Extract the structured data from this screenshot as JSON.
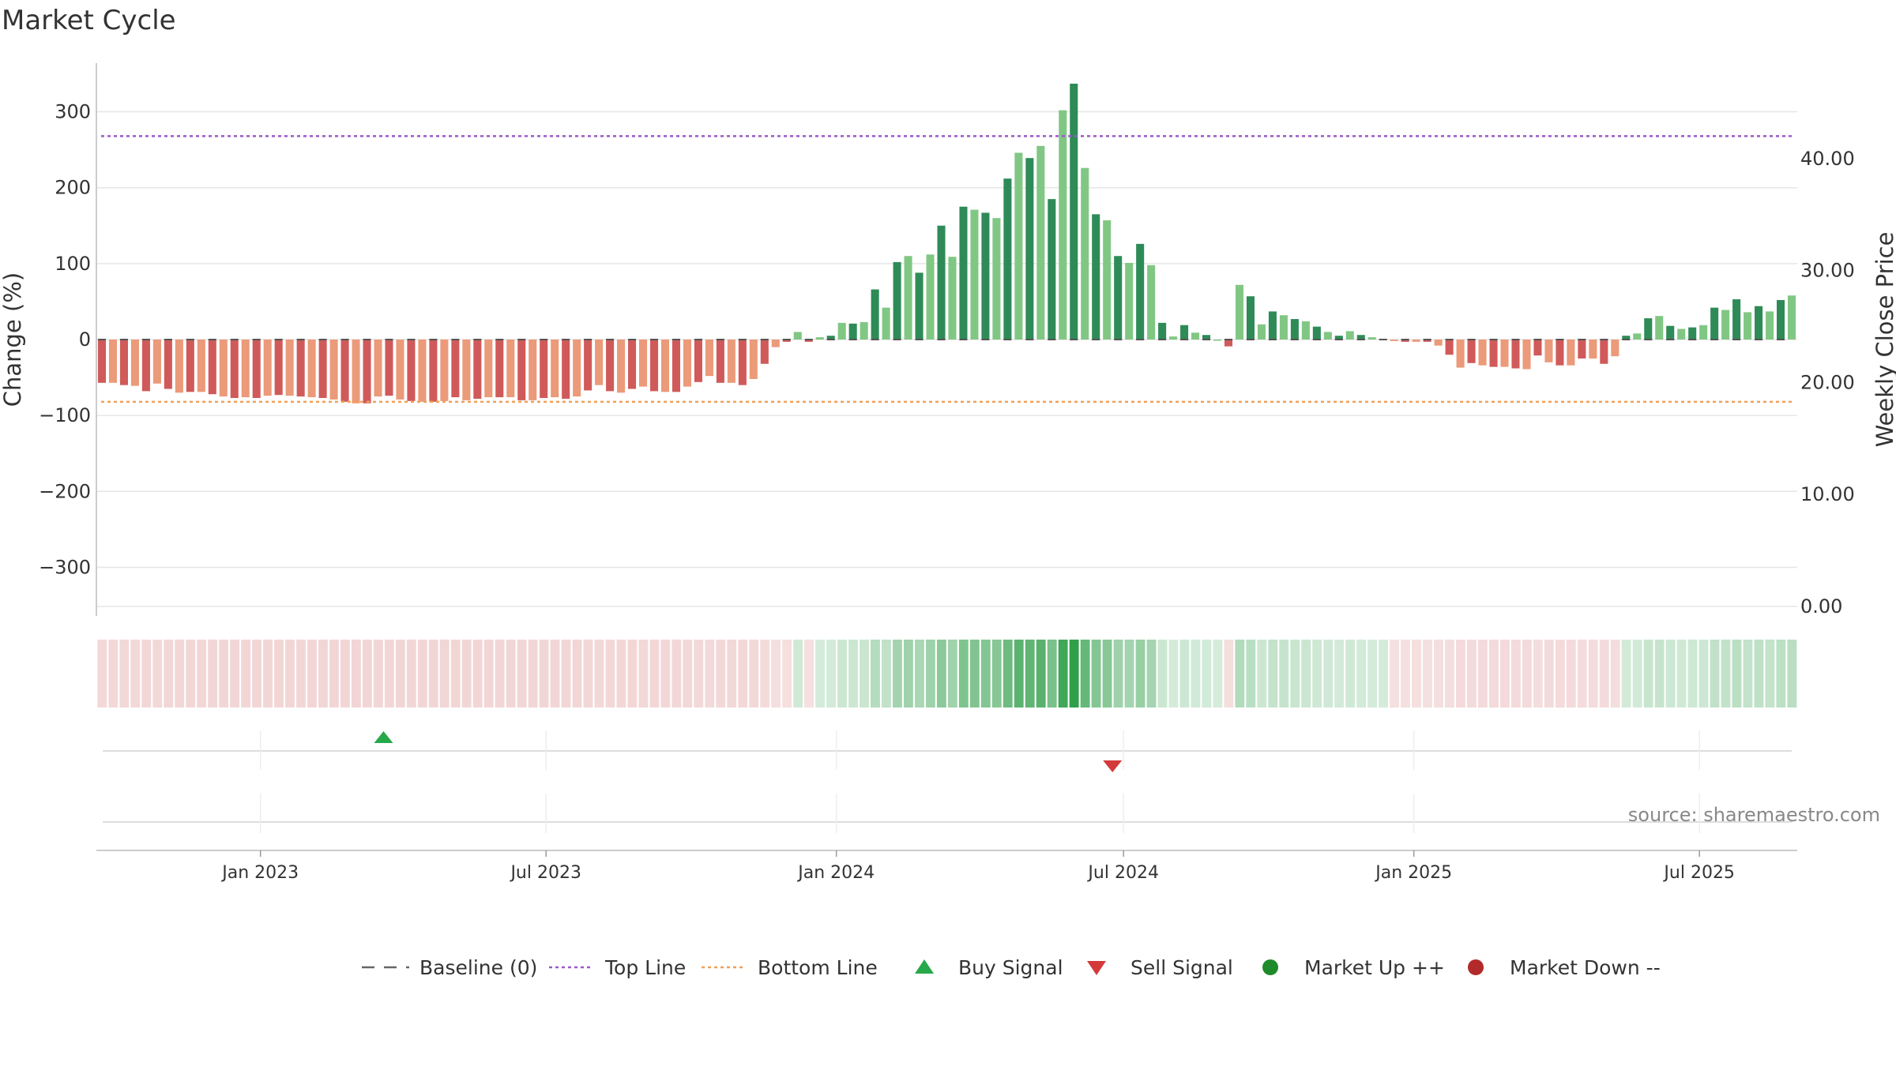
{
  "chart_data": {
    "type": "bar",
    "title": "Market Cycle",
    "ylabel_left": "Change (%)",
    "ylabel_right": "Weekly Close Price",
    "ylim_left": [
      -365,
      365
    ],
    "ylim_right": [
      0,
      48
    ],
    "yticks_left": [
      "300",
      "200",
      "100",
      "0",
      "−100",
      "−200",
      "−300"
    ],
    "yticks_left_values": [
      300,
      200,
      100,
      0,
      -100,
      -200,
      -300
    ],
    "yticks_right": [
      "40.00",
      "30.00",
      "20.00",
      "10.00",
      "0.00"
    ],
    "yticks_right_values": [
      40,
      30,
      20,
      10,
      0
    ],
    "top_line": 268,
    "bottom_line": -82,
    "baseline": 0,
    "x_start_date": "2022-09-19",
    "x_end_date": "2025-09-01",
    "xticks": [
      {
        "label": "Jan 2023",
        "date": "2023-01-01"
      },
      {
        "label": "Jul 2023",
        "date": "2023-07-01"
      },
      {
        "label": "Jan 2024",
        "date": "2024-01-01"
      },
      {
        "label": "Jul 2024",
        "date": "2024-07-01"
      },
      {
        "label": "Jan 2025",
        "date": "2025-01-01"
      },
      {
        "label": "Jul 2025",
        "date": "2025-07-01"
      }
    ],
    "weekly_change": [
      -57,
      -57,
      -60,
      -61,
      -68,
      -58,
      -65,
      -70,
      -69,
      -69,
      -72,
      -75,
      -77,
      -76,
      -77,
      -74,
      -73,
      -74,
      -75,
      -76,
      -77,
      -79,
      -82,
      -84,
      -84,
      -75,
      -74,
      -79,
      -81,
      -82,
      -82,
      -81,
      -76,
      -80,
      -78,
      -76,
      -76,
      -76,
      -80,
      -80,
      -77,
      -76,
      -78,
      -75,
      -67,
      -60,
      -68,
      -70,
      -65,
      -62,
      -68,
      -69,
      -69,
      -62,
      -56,
      -48,
      -57,
      -57,
      -60,
      -52,
      -32,
      -10,
      -3,
      10,
      -3,
      3,
      5,
      22,
      21,
      23,
      66,
      42,
      102,
      110,
      88,
      112,
      150,
      109,
      175,
      171,
      167,
      160,
      212,
      246,
      239,
      255,
      185,
      302,
      337,
      226,
      165,
      157,
      110,
      101,
      126,
      98,
      22,
      4,
      19,
      9,
      6,
      0,
      -9,
      72,
      57,
      20,
      37,
      32,
      27,
      24,
      17,
      10,
      5,
      11,
      6,
      3,
      1,
      -2,
      -3,
      -3,
      -3,
      -8,
      -20,
      -37,
      -31,
      -34,
      -36,
      -36,
      -38,
      -39,
      -21,
      -30,
      -34,
      -34,
      -25,
      -25,
      -32,
      -22,
      5,
      8,
      28,
      31,
      18,
      14,
      16,
      19,
      42,
      39,
      53,
      36,
      44,
      37,
      52,
      58
    ],
    "weekly_price": [],
    "signals": [
      {
        "type": "buy",
        "date": "2023-03-20"
      },
      {
        "type": "sell",
        "date": "2024-06-24"
      }
    ],
    "source": "source: sharemaestro.com",
    "legend": [
      {
        "label": "Baseline (0)",
        "kind": "dash",
        "color": "#666666"
      },
      {
        "label": "Top Line",
        "kind": "dot",
        "color": "#9b59c9"
      },
      {
        "label": "Bottom Line",
        "kind": "dot",
        "color": "#f0a05a"
      },
      {
        "label": "Buy Signal",
        "kind": "tri-up",
        "color": "#27a84a"
      },
      {
        "label": "Sell Signal",
        "kind": "tri-down",
        "color": "#d43a3a"
      },
      {
        "label": "Market Up ++",
        "kind": "circle",
        "color": "#1e8a2a"
      },
      {
        "label": "Market Down --",
        "kind": "circle",
        "color": "#b22a2a"
      }
    ]
  },
  "colors": {
    "up_dark": "#2e8b57",
    "up_light": "#81c784",
    "down_dark": "#d05a5a",
    "down_light": "#eb9a7a",
    "top_line": "#9b59c9",
    "bottom_line": "#f0a05a",
    "grid": "#e6e6e6"
  }
}
